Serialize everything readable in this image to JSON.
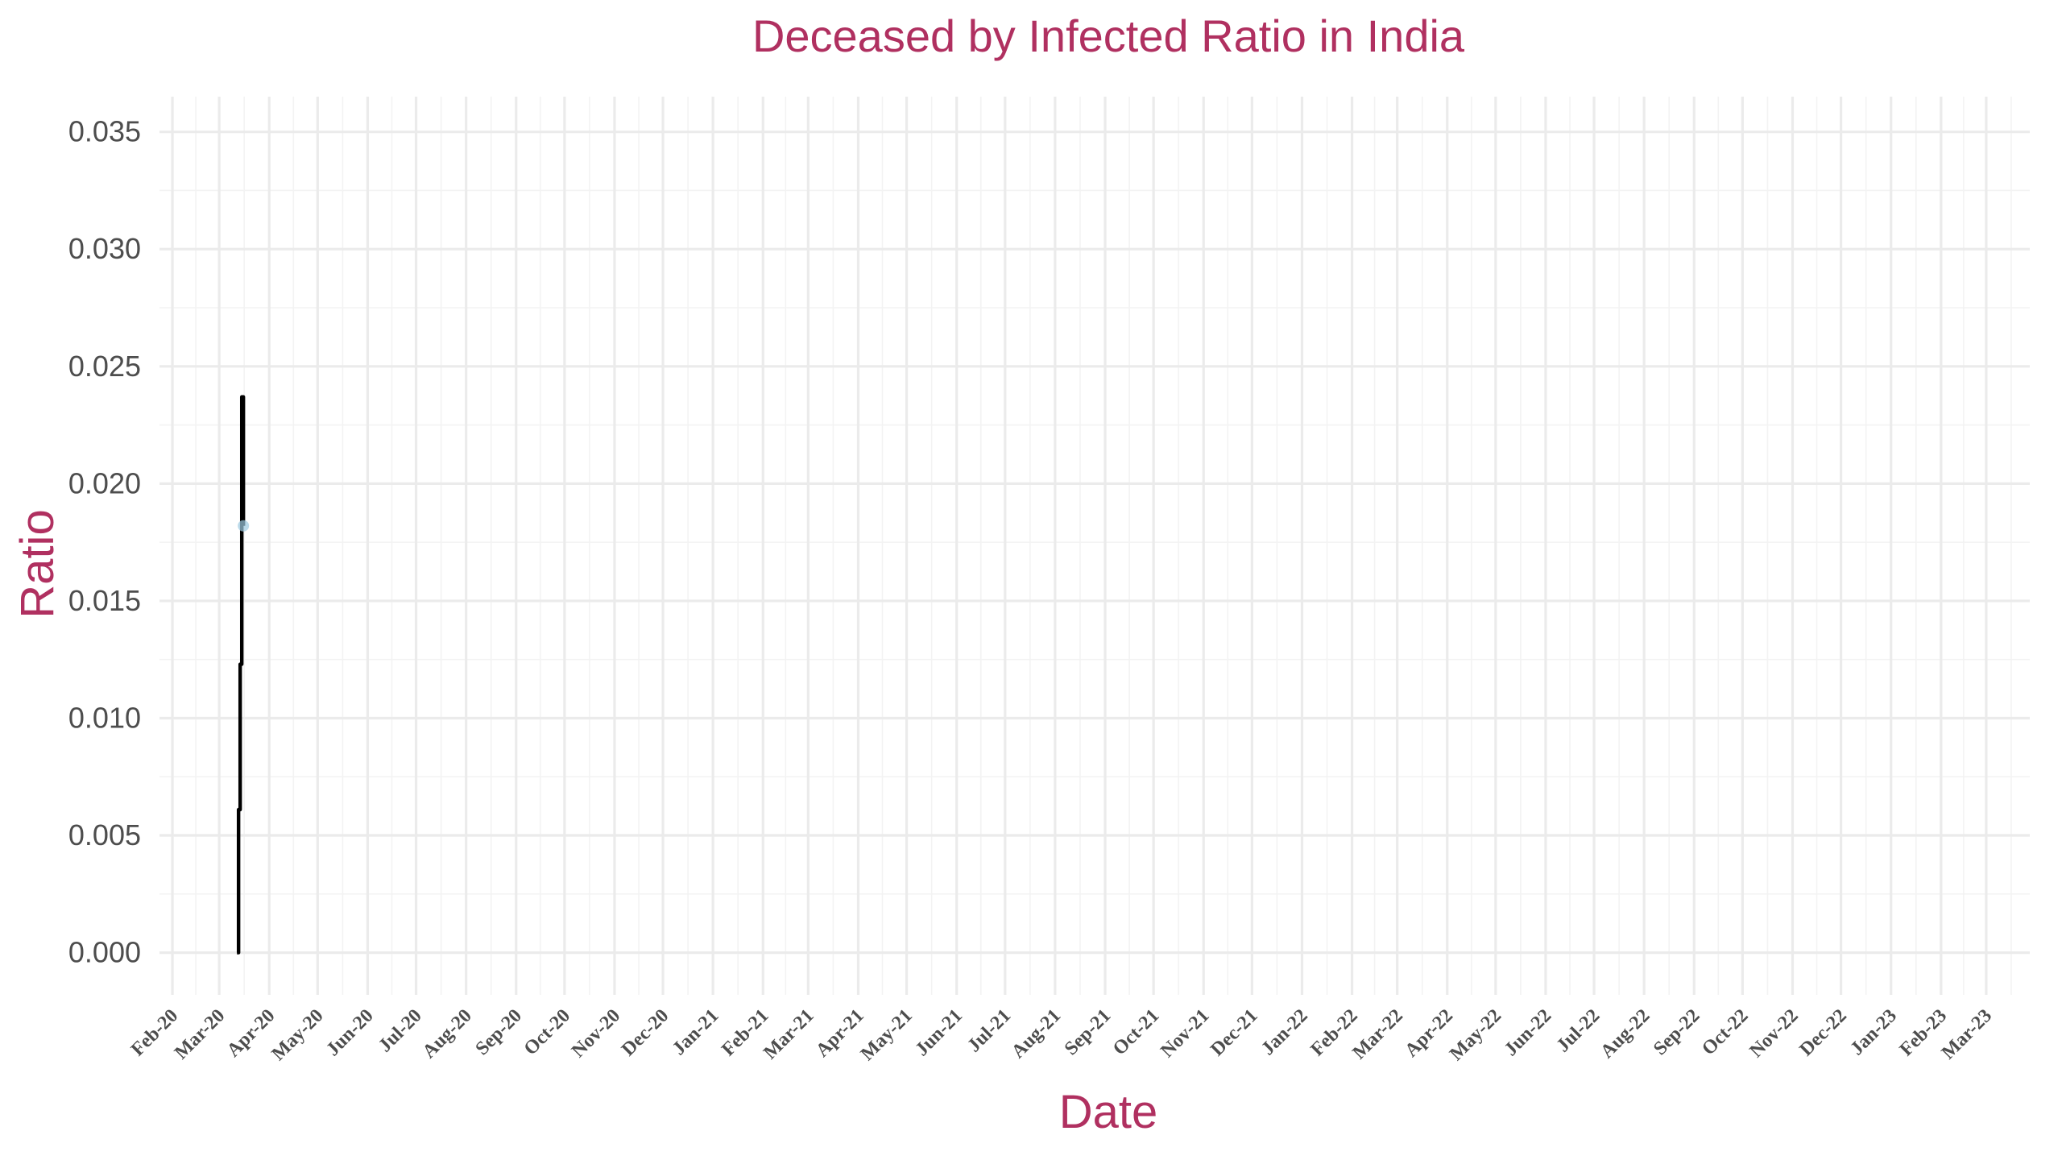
{
  "chart_data": {
    "type": "line",
    "title": "Deceased by Infected Ratio in India",
    "xlabel": "Date",
    "ylabel": "Ratio",
    "x_tick_labels": [
      "Feb-20",
      "Mar-20",
      "Apr-20",
      "May-20",
      "Jun-20",
      "Jul-20",
      "Aug-20",
      "Sep-20",
      "Oct-20",
      "Nov-20",
      "Dec-20",
      "Jan-21",
      "Feb-21",
      "Mar-21",
      "Apr-21",
      "May-21",
      "Jun-21",
      "Jul-21",
      "Aug-21",
      "Sep-21",
      "Oct-21",
      "Nov-21",
      "Dec-21",
      "Jan-22",
      "Feb-22",
      "Mar-22",
      "Apr-22",
      "May-22",
      "Jun-22",
      "Jul-22",
      "Aug-22",
      "Sep-22",
      "Oct-22",
      "Nov-22",
      "Dec-22",
      "Jan-23",
      "Feb-23",
      "Mar-23"
    ],
    "y_tick_labels": [
      "0.000",
      "0.005",
      "0.010",
      "0.015",
      "0.020",
      "0.025",
      "0.030",
      "0.035"
    ],
    "y_ticks": [
      0,
      0.005,
      0.01,
      0.015,
      0.02,
      0.025,
      0.03,
      0.035
    ],
    "xlim": [
      "2020-01-24",
      "2023-03-28"
    ],
    "ylim": [
      -0.0018,
      0.0365
    ],
    "grid": true,
    "x_scale": "date",
    "series": [
      {
        "color": "#000000",
        "x": [
          "2020-03-12",
          "2020-03-13",
          "2020-03-13",
          "2020-03-14",
          "2020-03-14",
          "2020-03-15",
          "2020-03-15",
          "2020-03-16",
          "2020-03-16"
        ],
        "y": [
          0.0,
          0.0,
          0.0061,
          0.0061,
          0.0123,
          0.0123,
          0.0237,
          0.0237,
          0.0182
        ]
      }
    ],
    "points": [
      {
        "x": "2020-03-16",
        "y": 0.0182,
        "color": "#9ecae1"
      }
    ]
  }
}
